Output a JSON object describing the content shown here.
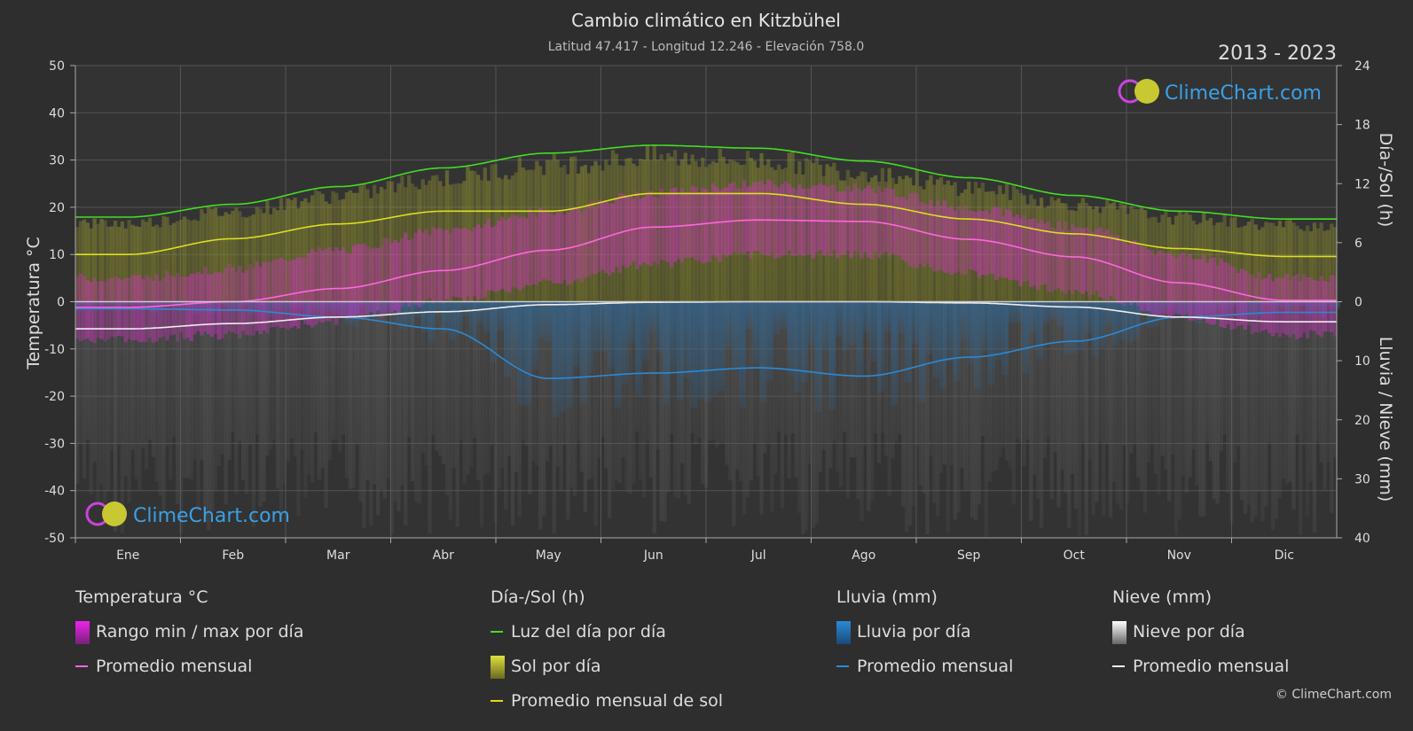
{
  "header": {
    "title": "Cambio climático en Kitzbühel",
    "subtitle": "Latitud 47.417 - Longitud 12.246 - Elevación 758.0",
    "year_range": "2013 - 2023"
  },
  "logo": {
    "text": "ClimeChart.com"
  },
  "copyright": "© ClimeChart.com",
  "chart_data": {
    "type": "area",
    "categories": [
      "Ene",
      "Feb",
      "Mar",
      "Abr",
      "May",
      "Jun",
      "Jul",
      "Ago",
      "Sep",
      "Oct",
      "Nov",
      "Dic"
    ],
    "axes": {
      "left": {
        "label": "Temperatura °C",
        "min": -50,
        "max": 50,
        "ticks": [
          50,
          40,
          30,
          20,
          10,
          0,
          -10,
          -20,
          -30,
          -40,
          -50
        ]
      },
      "right_top": {
        "label": "Día-/Sol (h)",
        "min": 0,
        "max": 24,
        "ticks": [
          24,
          18,
          12,
          6,
          0
        ]
      },
      "right_bottom": {
        "label": "Lluvia / Nieve (mm)",
        "min": 0,
        "max": 40,
        "ticks": [
          10,
          20,
          30,
          40
        ]
      }
    },
    "grid": true,
    "series": [
      {
        "name": "Luz del día por día",
        "unit": "h",
        "axis": "right_top",
        "color": "#44dd22",
        "values": [
          8.6,
          9.9,
          11.7,
          13.6,
          15.1,
          15.9,
          15.6,
          14.3,
          12.6,
          10.8,
          9.2,
          8.4
        ]
      },
      {
        "name": "Promedio mensual de sol",
        "unit": "h",
        "axis": "right_top",
        "color": "#dddd22",
        "values": [
          4.8,
          6.4,
          7.9,
          9.2,
          9.2,
          11.0,
          11.0,
          9.9,
          8.4,
          6.9,
          5.4,
          4.6
        ]
      },
      {
        "name": "Promedio mensual",
        "group": "Temperatura °C",
        "unit": "°C",
        "axis": "left",
        "color": "#ff66dd",
        "values": [
          -1.2,
          0.0,
          2.8,
          6.6,
          10.9,
          15.8,
          17.3,
          17.0,
          13.2,
          9.5,
          4.0,
          0.3
        ]
      },
      {
        "name": "Promedio mensual",
        "group": "Lluvia (mm)",
        "unit": "mm",
        "axis": "right_bottom",
        "color": "#2a8ad8",
        "values": [
          1.2,
          1.4,
          2.6,
          4.6,
          13.0,
          12.1,
          11.2,
          12.6,
          9.4,
          6.7,
          2.6,
          1.8
        ]
      },
      {
        "name": "Promedio mensual",
        "group": "Nieve (mm)",
        "unit": "mm",
        "axis": "right_bottom",
        "color": "#eeeeee",
        "values": [
          4.6,
          3.7,
          2.6,
          1.7,
          0.5,
          0.1,
          0.0,
          0.0,
          0.2,
          0.9,
          2.6,
          3.4
        ]
      }
    ],
    "daily_ranges": {
      "temperature_min_max": {
        "min": [
          -7,
          -6,
          -3,
          1,
          5,
          9,
          11,
          11,
          7,
          3,
          -2,
          -6
        ],
        "max": [
          4,
          6,
          10,
          14,
          18,
          22,
          24,
          23,
          19,
          15,
          9,
          4
        ]
      }
    }
  },
  "legend": {
    "groups": [
      {
        "title": "Temperatura °C",
        "items": [
          {
            "label": "Rango min / max por día",
            "kind": "swatch",
            "color": "#dd22dd"
          },
          {
            "label": "Promedio mensual",
            "kind": "line",
            "color": "#ff66dd"
          }
        ]
      },
      {
        "title": "Día-/Sol (h)",
        "items": [
          {
            "label": "Luz del día por día",
            "kind": "line",
            "color": "#44dd22"
          },
          {
            "label": "Sol por día",
            "kind": "swatch",
            "color": "#c8c832"
          },
          {
            "label": "Promedio mensual de sol",
            "kind": "line",
            "color": "#dddd22"
          }
        ]
      },
      {
        "title": "Lluvia (mm)",
        "items": [
          {
            "label": "Lluvia por día",
            "kind": "swatch",
            "color": "#2a8ad8"
          },
          {
            "label": "Promedio mensual",
            "kind": "line",
            "color": "#2a8ad8"
          }
        ]
      },
      {
        "title": "Nieve (mm)",
        "items": [
          {
            "label": "Nieve por día",
            "kind": "swatch",
            "color": "#dddddd"
          },
          {
            "label": "Promedio mensual",
            "kind": "line",
            "color": "#eeeeee"
          }
        ]
      }
    ]
  }
}
